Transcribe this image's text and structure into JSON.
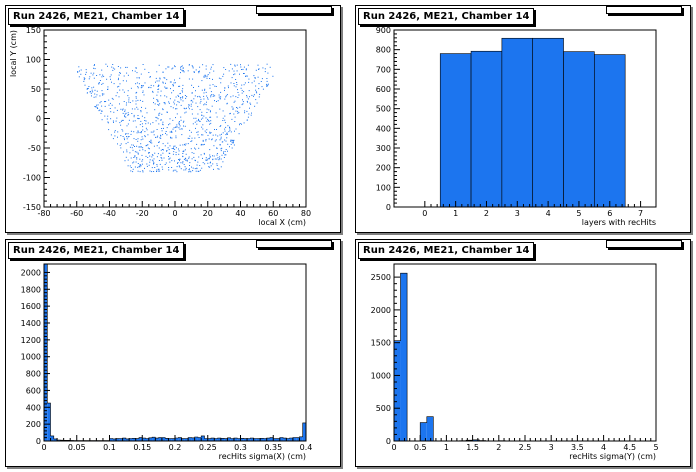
{
  "colors": {
    "fill": "#1c75ef",
    "axis": "#000000",
    "frame": "#000000"
  },
  "chart_data": [
    {
      "type": "scatter",
      "title": "Run 2426, ME21, Chamber 14",
      "xlabel": "local X (cm)",
      "ylabel": "local Y (cm)",
      "xlim": [
        -80,
        80
      ],
      "ylim": [
        -150,
        150
      ],
      "xticks": [
        -80,
        -60,
        -40,
        -20,
        0,
        20,
        40,
        60,
        80
      ],
      "yticks": [
        -150,
        -100,
        -50,
        0,
        50,
        100,
        150
      ],
      "color": "#1c75ef",
      "region": {
        "top_y": 93,
        "bottom_y": -90,
        "top_xmin": -64,
        "top_xmax": 64,
        "bottom_xmin": -27,
        "bottom_xmax": 27
      }
    },
    {
      "type": "bar",
      "title": "Run 2426, ME21, Chamber 14",
      "xlabel": "layers with recHits",
      "ylabel": "",
      "xlim": [
        -1,
        7.5
      ],
      "ylim": [
        0,
        900
      ],
      "xticks": [
        0,
        1,
        2,
        3,
        4,
        5,
        6,
        7
      ],
      "yticks": [
        0,
        100,
        200,
        300,
        400,
        500,
        600,
        700,
        800,
        900
      ],
      "bins": [
        {
          "lo": 0.5,
          "hi": 1.5,
          "value": 780
        },
        {
          "lo": 1.5,
          "hi": 2.5,
          "value": 792
        },
        {
          "lo": 2.5,
          "hi": 3.5,
          "value": 858
        },
        {
          "lo": 3.5,
          "hi": 4.5,
          "value": 858
        },
        {
          "lo": 4.5,
          "hi": 5.5,
          "value": 790
        },
        {
          "lo": 5.5,
          "hi": 6.5,
          "value": 775
        }
      ]
    },
    {
      "type": "bar",
      "title": "Run 2426, ME21, Chamber 14",
      "xlabel": "recHits sigma(X) (cm)",
      "ylabel": "",
      "xlim": [
        0,
        0.4
      ],
      "ylim": [
        0,
        2100
      ],
      "xticks": [
        0,
        0.05,
        0.1,
        0.15,
        0.2,
        0.25,
        0.3,
        0.35,
        0.4
      ],
      "xticklabels": [
        "0",
        "0.05",
        "0.1",
        "0.15",
        "0.2",
        "0.25",
        "0.3",
        "0.35",
        "0.4"
      ],
      "yticks": [
        0,
        200,
        400,
        600,
        800,
        1000,
        1200,
        1400,
        1600,
        1800,
        2000
      ],
      "bin_width": 0.005,
      "values": [
        2150,
        450,
        60,
        25,
        12,
        10,
        8,
        8,
        7,
        6,
        6,
        6,
        6,
        6,
        6,
        5,
        5,
        5,
        6,
        6,
        30,
        25,
        28,
        30,
        35,
        25,
        30,
        32,
        28,
        40,
        34,
        30,
        38,
        45,
        35,
        40,
        42,
        32,
        30,
        28,
        36,
        40,
        28,
        30,
        42,
        38,
        48,
        42,
        60,
        30,
        28,
        34,
        30,
        35,
        32,
        28,
        38,
        30,
        34,
        30,
        32,
        28,
        30,
        34,
        30,
        28,
        32,
        30,
        34,
        40,
        30,
        28,
        42,
        34,
        30,
        36,
        42,
        40,
        50,
        215
      ]
    },
    {
      "type": "bar",
      "title": "Run 2426, ME21, Chamber 14",
      "xlabel": "recHits sigma(Y) (cm)",
      "ylabel": "",
      "xlim": [
        0,
        5
      ],
      "ylim": [
        0,
        2700
      ],
      "xticks": [
        0,
        0.5,
        1,
        1.5,
        2,
        2.5,
        3,
        3.5,
        4,
        4.5,
        5
      ],
      "xticklabels": [
        "0",
        "0.5",
        "1",
        "1.5",
        "2",
        "2.5",
        "3",
        "3.5",
        "4",
        "4.5",
        "5"
      ],
      "yticks": [
        0,
        500,
        1000,
        1500,
        2000,
        2500
      ],
      "bin_width": 0.125,
      "values": [
        1530,
        2560,
        0,
        0,
        280,
        370,
        0,
        0,
        0,
        0,
        5,
        12,
        18,
        6,
        0,
        0,
        4,
        0,
        0,
        0,
        0,
        3,
        0,
        0,
        2,
        0,
        0,
        0,
        0,
        0,
        0,
        0,
        0,
        0,
        0,
        0,
        0,
        0,
        0,
        0
      ]
    }
  ]
}
